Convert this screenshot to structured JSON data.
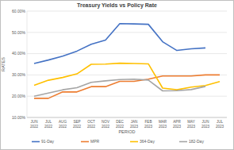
{
  "chart_data": {
    "type": "line",
    "title": "Treasury Yields vs Policy Rate",
    "x_label": "PERIOD",
    "y_label": "RATES",
    "categories": [
      "JUN 2022",
      "JUL 2022",
      "AUG 2022",
      "SEP 2022",
      "OCT 2022",
      "NOV 2022",
      "DEC 2022",
      "JAN 2023",
      "FEB 2023",
      "MAR 2023",
      "APR 2023",
      "MAY 2023",
      "JUN 2023",
      "JUL 2023"
    ],
    "series": [
      {
        "name": "91-Day",
        "color": "#4472c4",
        "values": [
          35.4,
          37.0,
          38.8,
          41.2,
          44.4,
          46.4,
          54.1,
          54.0,
          53.8,
          45.6,
          41.5,
          42.3,
          42.7,
          null
        ]
      },
      {
        "name": "MPR",
        "color": "#ed7d31",
        "values": [
          19.0,
          19.0,
          22.0,
          22.0,
          24.5,
          24.5,
          27.0,
          27.0,
          28.0,
          29.5,
          29.5,
          29.5,
          30.0,
          30.0
        ]
      },
      {
        "name": "364-Day",
        "color": "#ffc000",
        "values": [
          25.1,
          27.5,
          28.8,
          30.5,
          35.0,
          35.1,
          35.5,
          35.4,
          35.2,
          23.8,
          23.0,
          24.3,
          25.0,
          26.9
        ]
      },
      {
        "name": "182-Day",
        "color": "#a5a5a5",
        "values": [
          20.0,
          21.5,
          23.0,
          24.0,
          26.5,
          27.2,
          27.8,
          28.0,
          27.6,
          22.5,
          22.6,
          23.1,
          24.6,
          null
        ]
      }
    ],
    "ylim": [
      10,
      60
    ],
    "yticks": [
      {
        "value": 10,
        "label": "10.00%"
      },
      {
        "value": 20,
        "label": "20.00%"
      },
      {
        "value": 30,
        "label": "30.00%"
      },
      {
        "value": 40,
        "label": "40.00%"
      },
      {
        "value": 50,
        "label": "50.00%"
      },
      {
        "value": 60,
        "label": "60.00%"
      }
    ],
    "grid": true,
    "legend": "bottom"
  }
}
